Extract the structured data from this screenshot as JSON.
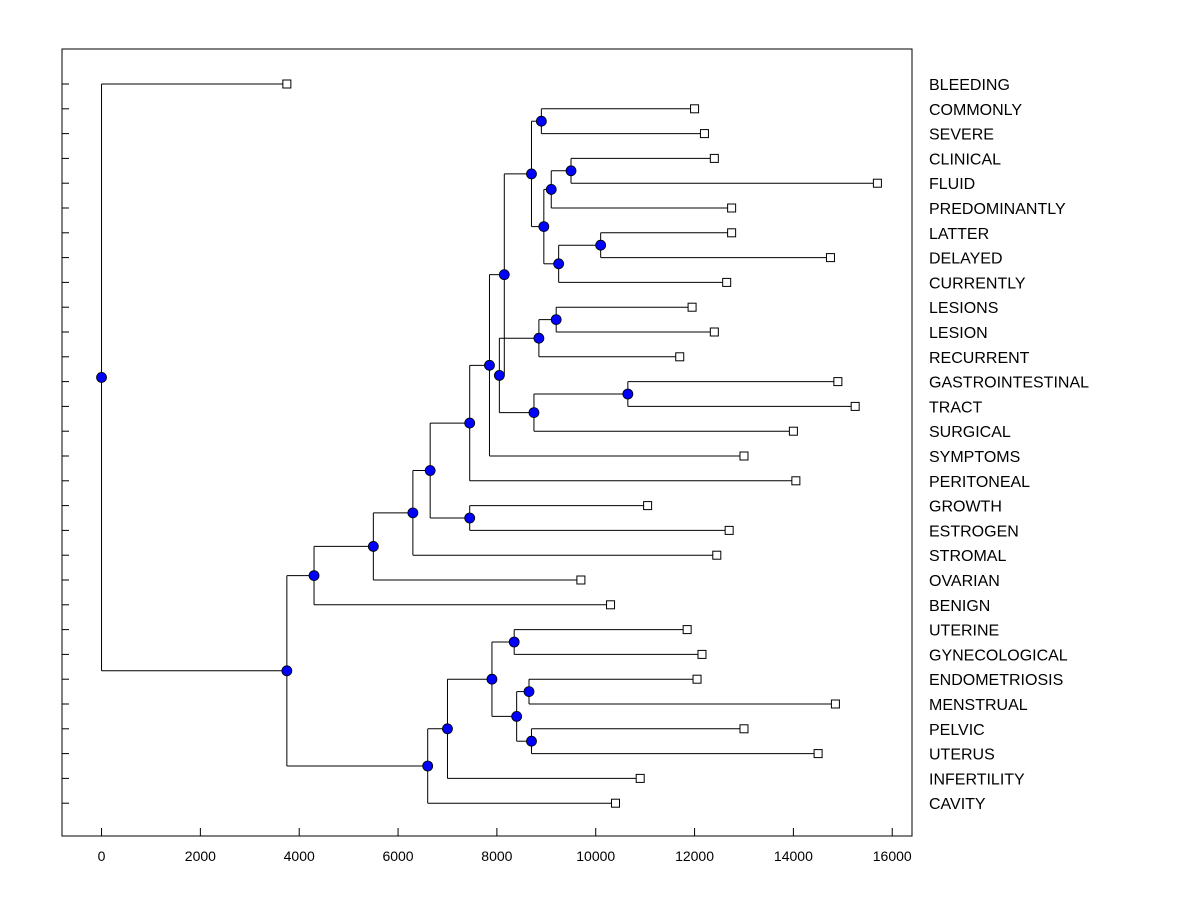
{
  "chart_data": {
    "type": "dendrogram",
    "title": "",
    "xlabel": "",
    "ylabel": "",
    "xlim": [
      -800,
      16400
    ],
    "xticks": [
      0,
      2000,
      4000,
      6000,
      8000,
      10000,
      12000,
      14000,
      16000
    ],
    "colors": {
      "node": "#0000ff",
      "line": "#000000",
      "leaf_fill": "#ffffff"
    },
    "leaves": [
      {
        "label": "BLEEDING",
        "x": 3750
      },
      {
        "label": "COMMONLY",
        "x": 12000
      },
      {
        "label": "SEVERE",
        "x": 12200
      },
      {
        "label": "CLINICAL",
        "x": 12400
      },
      {
        "label": "FLUID",
        "x": 15700
      },
      {
        "label": "PREDOMINANTLY",
        "x": 12750
      },
      {
        "label": "LATTER",
        "x": 12750
      },
      {
        "label": "DELAYED",
        "x": 14750
      },
      {
        "label": "CURRENTLY",
        "x": 12650
      },
      {
        "label": "LESIONS",
        "x": 11950
      },
      {
        "label": "LESION",
        "x": 12400
      },
      {
        "label": "RECURRENT",
        "x": 11700
      },
      {
        "label": "GASTROINTESTINAL",
        "x": 14900
      },
      {
        "label": "TRACT",
        "x": 15250
      },
      {
        "label": "SURGICAL",
        "x": 14000
      },
      {
        "label": "SYMPTOMS",
        "x": 13000
      },
      {
        "label": "PERITONEAL",
        "x": 14050
      },
      {
        "label": "GROWTH",
        "x": 11050
      },
      {
        "label": "ESTROGEN",
        "x": 12700
      },
      {
        "label": "STROMAL",
        "x": 12450
      },
      {
        "label": "OVARIAN",
        "x": 9700
      },
      {
        "label": "BENIGN",
        "x": 10300
      },
      {
        "label": "UTERINE",
        "x": 11850
      },
      {
        "label": "GYNECOLOGICAL",
        "x": 12150
      },
      {
        "label": "ENDOMETRIOSIS",
        "x": 12050
      },
      {
        "label": "MENSTRUAL",
        "x": 14850
      },
      {
        "label": "PELVIC",
        "x": 13000
      },
      {
        "label": "UTERUS",
        "x": 14500
      },
      {
        "label": "INFERTILITY",
        "x": 10900
      },
      {
        "label": "CAVITY",
        "x": 10400
      }
    ],
    "merges": [
      {
        "id": "n1",
        "x": 8900,
        "children": [
          "COMMONLY",
          "SEVERE"
        ]
      },
      {
        "id": "n2",
        "x": 9500,
        "children": [
          "CLINICAL",
          "FLUID"
        ]
      },
      {
        "id": "n3",
        "x": 9100,
        "children": [
          "n2",
          "PREDOMINANTLY"
        ]
      },
      {
        "id": "n4",
        "x": 10100,
        "children": [
          "LATTER",
          "DELAYED"
        ]
      },
      {
        "id": "n5",
        "x": 9250,
        "children": [
          "n4",
          "CURRENTLY"
        ]
      },
      {
        "id": "n6",
        "x": 8950,
        "children": [
          "n3",
          "n5"
        ]
      },
      {
        "id": "n7",
        "x": 8700,
        "children": [
          "n1",
          "n6"
        ]
      },
      {
        "id": "n8",
        "x": 9200,
        "children": [
          "LESIONS",
          "LESION"
        ]
      },
      {
        "id": "n9",
        "x": 8850,
        "children": [
          "n8",
          "RECURRENT"
        ]
      },
      {
        "id": "n10",
        "x": 10650,
        "children": [
          "GASTROINTESTINAL",
          "TRACT"
        ]
      },
      {
        "id": "n11",
        "x": 8750,
        "children": [
          "n10",
          "SURGICAL"
        ]
      },
      {
        "id": "n12",
        "x": 8050,
        "children": [
          "n9",
          "n11"
        ]
      },
      {
        "id": "n13",
        "x": 8150,
        "children": [
          "n7",
          "n12"
        ]
      },
      {
        "id": "n14",
        "x": 7850,
        "children": [
          "n13",
          "SYMPTOMS"
        ]
      },
      {
        "id": "n15",
        "x": 7450,
        "children": [
          "n14",
          "PERITONEAL"
        ]
      },
      {
        "id": "n16",
        "x": 7450,
        "children": [
          "GROWTH",
          "ESTROGEN"
        ]
      },
      {
        "id": "n17",
        "x": 6650,
        "children": [
          "n15",
          "n16"
        ]
      },
      {
        "id": "n18",
        "x": 6300,
        "children": [
          "n17",
          "STROMAL"
        ]
      },
      {
        "id": "n19",
        "x": 5500,
        "children": [
          "n18",
          "OVARIAN"
        ]
      },
      {
        "id": "n20",
        "x": 4300,
        "children": [
          "n19",
          "BENIGN"
        ]
      },
      {
        "id": "n21",
        "x": 8350,
        "children": [
          "UTERINE",
          "GYNECOLOGICAL"
        ]
      },
      {
        "id": "n22",
        "x": 8650,
        "children": [
          "ENDOMETRIOSIS",
          "MENSTRUAL"
        ]
      },
      {
        "id": "n23",
        "x": 8700,
        "children": [
          "PELVIC",
          "UTERUS"
        ]
      },
      {
        "id": "n24",
        "x": 8400,
        "children": [
          "n22",
          "n23"
        ]
      },
      {
        "id": "n25",
        "x": 7900,
        "children": [
          "n21",
          "n24"
        ]
      },
      {
        "id": "n26",
        "x": 7000,
        "children": [
          "n25",
          "INFERTILITY"
        ]
      },
      {
        "id": "n27",
        "x": 6600,
        "children": [
          "n26",
          "CAVITY"
        ]
      },
      {
        "id": "n28",
        "x": 3750,
        "children": [
          "n20",
          "n27"
        ]
      },
      {
        "id": "root",
        "x": 0,
        "children": [
          "BLEEDING",
          "n28"
        ]
      }
    ]
  }
}
